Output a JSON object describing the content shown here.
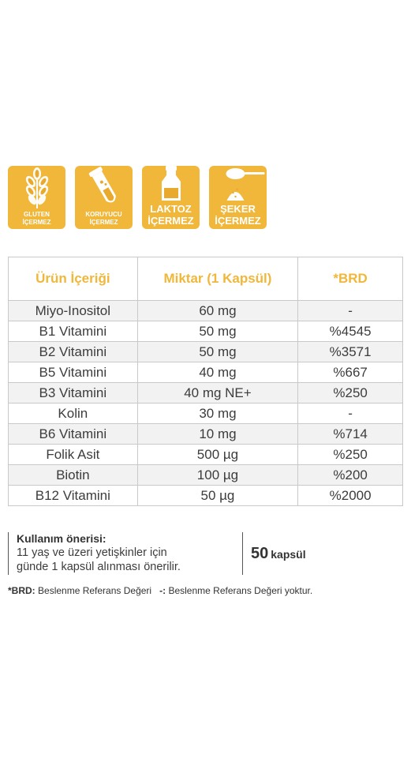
{
  "badges": [
    {
      "line1": "GLUTEN",
      "line2": "İÇERMEZ",
      "icon": "wheat-icon"
    },
    {
      "line1": "KORUYUCU",
      "line2": "İÇERMEZ",
      "icon": "test-tube-icon"
    },
    {
      "line1": "LAKTOZ",
      "line2": "İÇERMEZ",
      "icon": "milk-bottle-icon"
    },
    {
      "line1": "ŞEKER",
      "line2": "İÇERMEZ",
      "icon": "sugar-spoon-icon"
    }
  ],
  "table": {
    "headers": [
      "Ürün İçeriği",
      "Miktar (1 Kapsül)",
      "*BRD"
    ],
    "rows": [
      [
        "Miyo-Inositol",
        "60 mg",
        "-"
      ],
      [
        "B1 Vitamini",
        "50 mg",
        "%4545"
      ],
      [
        "B2 Vitamini",
        "50 mg",
        "%3571"
      ],
      [
        "B5 Vitamini",
        "40 mg",
        "%667"
      ],
      [
        "B3 Vitamini",
        "40 mg NE+",
        "%250"
      ],
      [
        "Kolin",
        "30 mg",
        "-"
      ],
      [
        "B6 Vitamini",
        "10 mg",
        "%714"
      ],
      [
        "Folik Asit",
        "500 µg",
        "%250"
      ],
      [
        "Biotin",
        "100 µg",
        "%200"
      ],
      [
        "B12 Vitamini",
        "50 µg",
        "%2000"
      ]
    ]
  },
  "usage": {
    "title": "Kullanım önerisi:",
    "line1": "11 yaş ve üzeri yetişkinler için",
    "line2": "günde 1 kapsül alınması önerilir."
  },
  "count": {
    "number": "50",
    "unit": "kapsül"
  },
  "footnote": {
    "brd_key": "*BRD:",
    "brd_text": "Beslenme Referans Değeri",
    "dash_key": "-:",
    "dash_text": "Beslenme Referans Değeri yoktur."
  },
  "colors": {
    "accent": "#f0b73a",
    "row_alt": "#f2f2f2",
    "border": "#c9c9c9"
  }
}
